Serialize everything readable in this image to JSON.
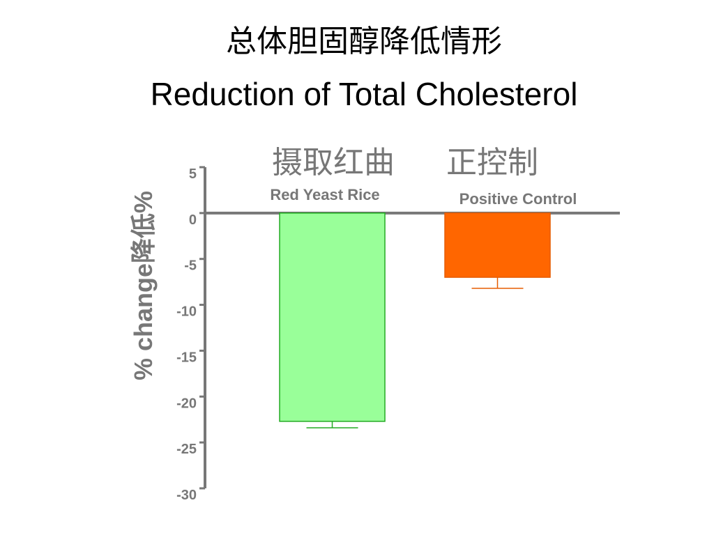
{
  "slide": {
    "title_zh": "总体胆固醇降低情形",
    "title_en": "Reduction of Total Cholesterol"
  },
  "colors": {
    "axis": "#777777",
    "red_yeast_rice_fill": "#99ff99",
    "red_yeast_rice_edge": "#22aa22",
    "positive_control_fill": "#ff6600",
    "positive_control_edge": "#e65c00",
    "label_text": "#777777"
  },
  "chart_data": {
    "type": "bar",
    "categories": [
      "Red Yeast Rice",
      "Positive Control"
    ],
    "category_labels_zh": [
      "摄取红曲",
      "正控制"
    ],
    "values": [
      -22.7,
      -7.0
    ],
    "error_bars": [
      0.7,
      1.2
    ],
    "ylabel": "% change降低%",
    "ylim": [
      -30,
      5
    ],
    "y_ticks": [
      "5",
      "0",
      "-5",
      "-10",
      "-15",
      "-20",
      "-25",
      "-30"
    ],
    "y_tick_values": [
      5,
      0,
      -5,
      -10,
      -15,
      -20,
      -25,
      -30
    ],
    "grid": false,
    "legend": "none"
  }
}
